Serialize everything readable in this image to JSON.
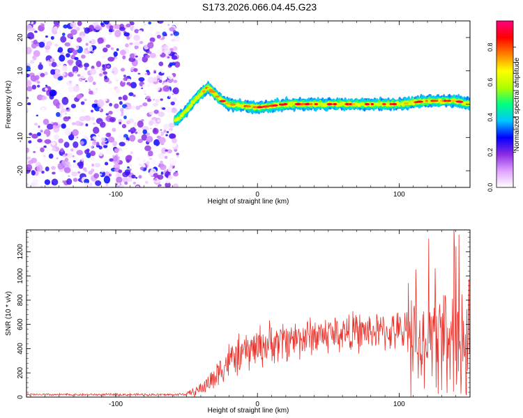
{
  "title": "S173.2026.066.04.45.G23",
  "chart_data": [
    {
      "type": "heatmap",
      "name": "spectrogram",
      "xlabel": "Height of straight line (km)",
      "ylabel": "Frequency (Hz)",
      "xlim": [
        -163,
        150
      ],
      "ylim": [
        -25,
        25
      ],
      "xticks": [
        -100,
        0,
        100
      ],
      "yticks": [
        -20,
        -10,
        0,
        10,
        20
      ],
      "noise_region_x": [
        -163,
        -58
      ],
      "ridge": {
        "description_points_x": [
          -58,
          -50,
          -45,
          -40,
          -35,
          -30,
          -25,
          -20,
          0,
          20,
          40,
          60,
          80,
          100,
          120,
          140,
          150
        ],
        "description_points_y": [
          -5,
          -2,
          1,
          3,
          5,
          3,
          1,
          0,
          -1,
          0,
          0,
          0,
          0,
          0,
          1,
          1,
          0
        ]
      },
      "colorbar": {
        "label": "Normalized spectral amplitude",
        "range": [
          0,
          0.95
        ],
        "ticks": [
          "0.0",
          "0.2",
          "0.4",
          "0.6",
          "0.8"
        ],
        "colors": [
          "#ffffff",
          "#e0a0ff",
          "#8a2be2",
          "#0000ff",
          "#00c8ff",
          "#00ff80",
          "#b0ff00",
          "#ffff00",
          "#ff8000",
          "#ff0000",
          "#ff0080"
        ]
      }
    },
    {
      "type": "line",
      "name": "snr",
      "xlabel": "Height of straight line (km)",
      "ylabel": "SNR (10 * v/v)",
      "xlim": [
        -163,
        150
      ],
      "ylim": [
        0,
        1380
      ],
      "xticks": [
        -100,
        0,
        100
      ],
      "yticks": [
        0,
        200,
        400,
        600,
        800,
        1000,
        1200
      ],
      "color": "#e8312a",
      "envelope": {
        "x": [
          -163,
          -60,
          -50,
          -45,
          -40,
          -35,
          -30,
          -25,
          -20,
          -10,
          0,
          20,
          40,
          60,
          80,
          100,
          110,
          120,
          130,
          140,
          150
        ],
        "base": [
          20,
          20,
          25,
          40,
          70,
          110,
          170,
          250,
          300,
          360,
          420,
          470,
          510,
          530,
          540,
          540,
          520,
          500,
          480,
          450,
          500
        ],
        "amp": [
          10,
          10,
          15,
          40,
          60,
          90,
          120,
          150,
          160,
          170,
          180,
          180,
          170,
          170,
          160,
          160,
          300,
          420,
          460,
          520,
          600
        ]
      }
    }
  ]
}
